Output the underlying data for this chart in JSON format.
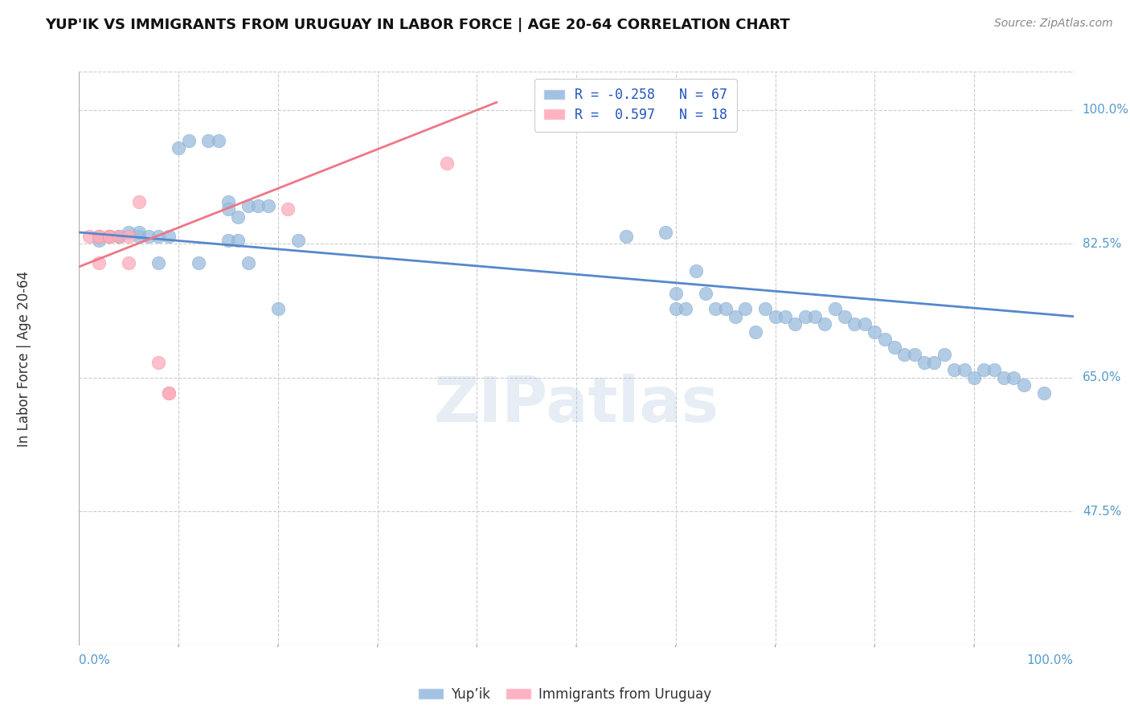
{
  "title": "YUP'IK VS IMMIGRANTS FROM URUGUAY IN LABOR FORCE | AGE 20-64 CORRELATION CHART",
  "source": "Source: ZipAtlas.com",
  "ylabel": "In Labor Force | Age 20-64",
  "ytick_labels": [
    "47.5%",
    "65.0%",
    "82.5%",
    "100.0%"
  ],
  "ytick_values": [
    0.475,
    0.65,
    0.825,
    1.0
  ],
  "xtick_labels": [
    "0.0%",
    "100.0%"
  ],
  "xlim": [
    0.0,
    1.0
  ],
  "ylim": [
    0.3,
    1.05
  ],
  "watermark": "ZIPatlas",
  "legend_blue_label": "Yup’ik",
  "legend_pink_label": "Immigrants from Uruguay",
  "blue_r": -0.258,
  "blue_n": 67,
  "pink_r": 0.597,
  "pink_n": 18,
  "blue_color": "#99BBDD",
  "pink_color": "#FFAABB",
  "blue_line_color": "#5588CC",
  "pink_line_color": "#EE7788",
  "blue_points_x": [
    0.02,
    0.03,
    0.04,
    0.04,
    0.05,
    0.06,
    0.06,
    0.07,
    0.08,
    0.08,
    0.09,
    0.1,
    0.11,
    0.13,
    0.14,
    0.15,
    0.15,
    0.16,
    0.17,
    0.18,
    0.19,
    0.2,
    0.22,
    0.12,
    0.15,
    0.16,
    0.17,
    0.55,
    0.59,
    0.6,
    0.6,
    0.61,
    0.62,
    0.63,
    0.64,
    0.65,
    0.66,
    0.67,
    0.68,
    0.69,
    0.7,
    0.71,
    0.72,
    0.73,
    0.74,
    0.75,
    0.76,
    0.77,
    0.78,
    0.79,
    0.8,
    0.81,
    0.82,
    0.83,
    0.84,
    0.85,
    0.86,
    0.87,
    0.88,
    0.89,
    0.9,
    0.91,
    0.92,
    0.93,
    0.94,
    0.95,
    0.97
  ],
  "blue_points_y": [
    0.83,
    0.835,
    0.835,
    0.835,
    0.84,
    0.835,
    0.84,
    0.835,
    0.8,
    0.835,
    0.835,
    0.95,
    0.96,
    0.96,
    0.96,
    0.88,
    0.87,
    0.86,
    0.875,
    0.875,
    0.875,
    0.74,
    0.83,
    0.8,
    0.83,
    0.83,
    0.8,
    0.835,
    0.84,
    0.76,
    0.74,
    0.74,
    0.79,
    0.76,
    0.74,
    0.74,
    0.73,
    0.74,
    0.71,
    0.74,
    0.73,
    0.73,
    0.72,
    0.73,
    0.73,
    0.72,
    0.74,
    0.73,
    0.72,
    0.72,
    0.71,
    0.7,
    0.69,
    0.68,
    0.68,
    0.67,
    0.67,
    0.68,
    0.66,
    0.66,
    0.65,
    0.66,
    0.66,
    0.65,
    0.65,
    0.64,
    0.63
  ],
  "pink_points_x": [
    0.01,
    0.02,
    0.02,
    0.02,
    0.03,
    0.03,
    0.03,
    0.03,
    0.03,
    0.04,
    0.05,
    0.05,
    0.06,
    0.08,
    0.09,
    0.09,
    0.21,
    0.37
  ],
  "pink_points_y": [
    0.835,
    0.8,
    0.835,
    0.835,
    0.835,
    0.835,
    0.835,
    0.835,
    0.835,
    0.835,
    0.8,
    0.835,
    0.88,
    0.67,
    0.63,
    0.63,
    0.87,
    0.93
  ],
  "blue_trendline_x": [
    0.0,
    1.0
  ],
  "blue_trendline_y": [
    0.84,
    0.73
  ],
  "pink_trendline_x": [
    0.0,
    0.42
  ],
  "pink_trendline_y": [
    0.795,
    1.01
  ],
  "grid_x_values": [
    0.1,
    0.2,
    0.3,
    0.4,
    0.5,
    0.6,
    0.7,
    0.8,
    0.9
  ],
  "xtick_minor_values": [
    0.1,
    0.2,
    0.3,
    0.4,
    0.5,
    0.6,
    0.7,
    0.8,
    0.9
  ]
}
